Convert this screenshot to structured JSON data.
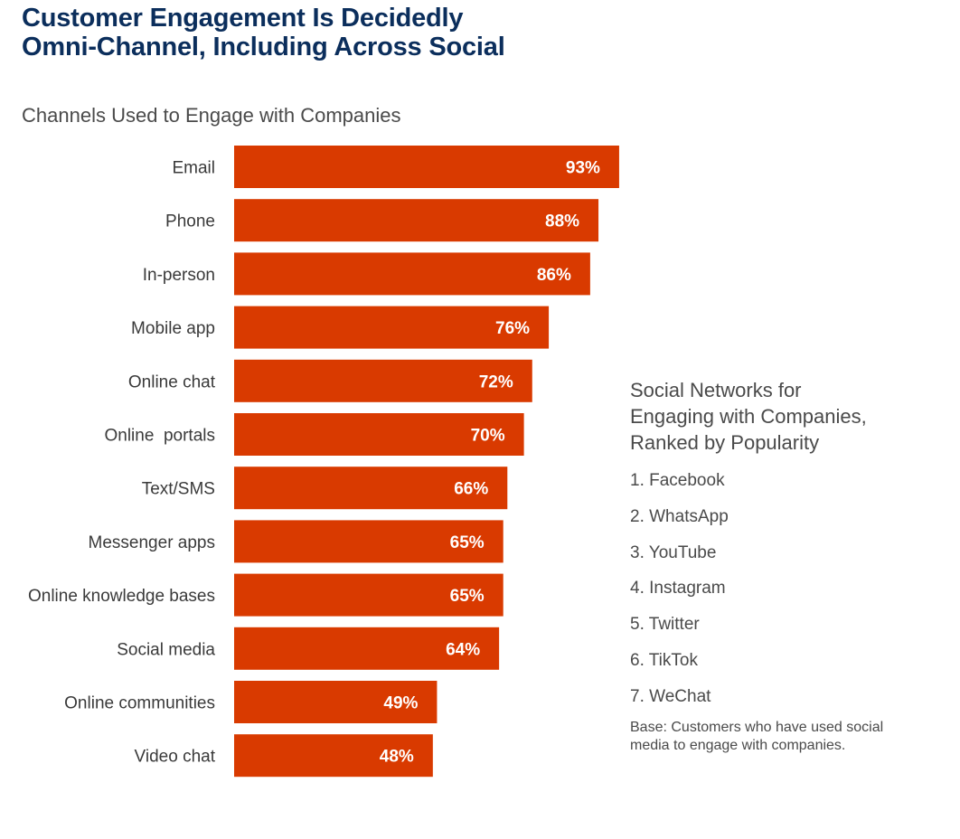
{
  "title_lines": [
    "Customer Engagement Is Decidedly",
    "Omni-Channel, Including Across Social"
  ],
  "colors": {
    "bar": "#d93a00",
    "title": "#0b2e5c",
    "text": "#4a4a4a"
  },
  "chart_data": {
    "type": "bar",
    "orientation": "horizontal",
    "title": "Channels Used to Engage with Companies",
    "categories": [
      "Email",
      "Phone",
      "In-person",
      "Mobile app",
      "Online chat",
      "Online  portals",
      "Text/SMS",
      "Messenger apps",
      "Online knowledge bases",
      "Social media",
      "Online communities",
      "Video chat"
    ],
    "values": [
      93,
      88,
      86,
      76,
      72,
      70,
      66,
      65,
      65,
      64,
      49,
      48
    ],
    "value_labels": [
      "93%",
      "88%",
      "86%",
      "76%",
      "72%",
      "70%",
      "66%",
      "65%",
      "65%",
      "64%",
      "49%",
      "48%"
    ],
    "unit": "%",
    "xlim": [
      0,
      100
    ],
    "grid": false,
    "legend": "none"
  },
  "side_panel": {
    "heading_lines": [
      "Social Networks for",
      "Engaging with Companies,",
      "Ranked by Popularity"
    ],
    "ranked": [
      "1. Facebook",
      "2. WhatsApp",
      "3. YouTube",
      "4. Instagram",
      "5. Twitter",
      "6. TikTok",
      "7. WeChat"
    ],
    "base_note_lines": [
      "Base: Customers who have used social",
      "media to engage with companies."
    ]
  }
}
